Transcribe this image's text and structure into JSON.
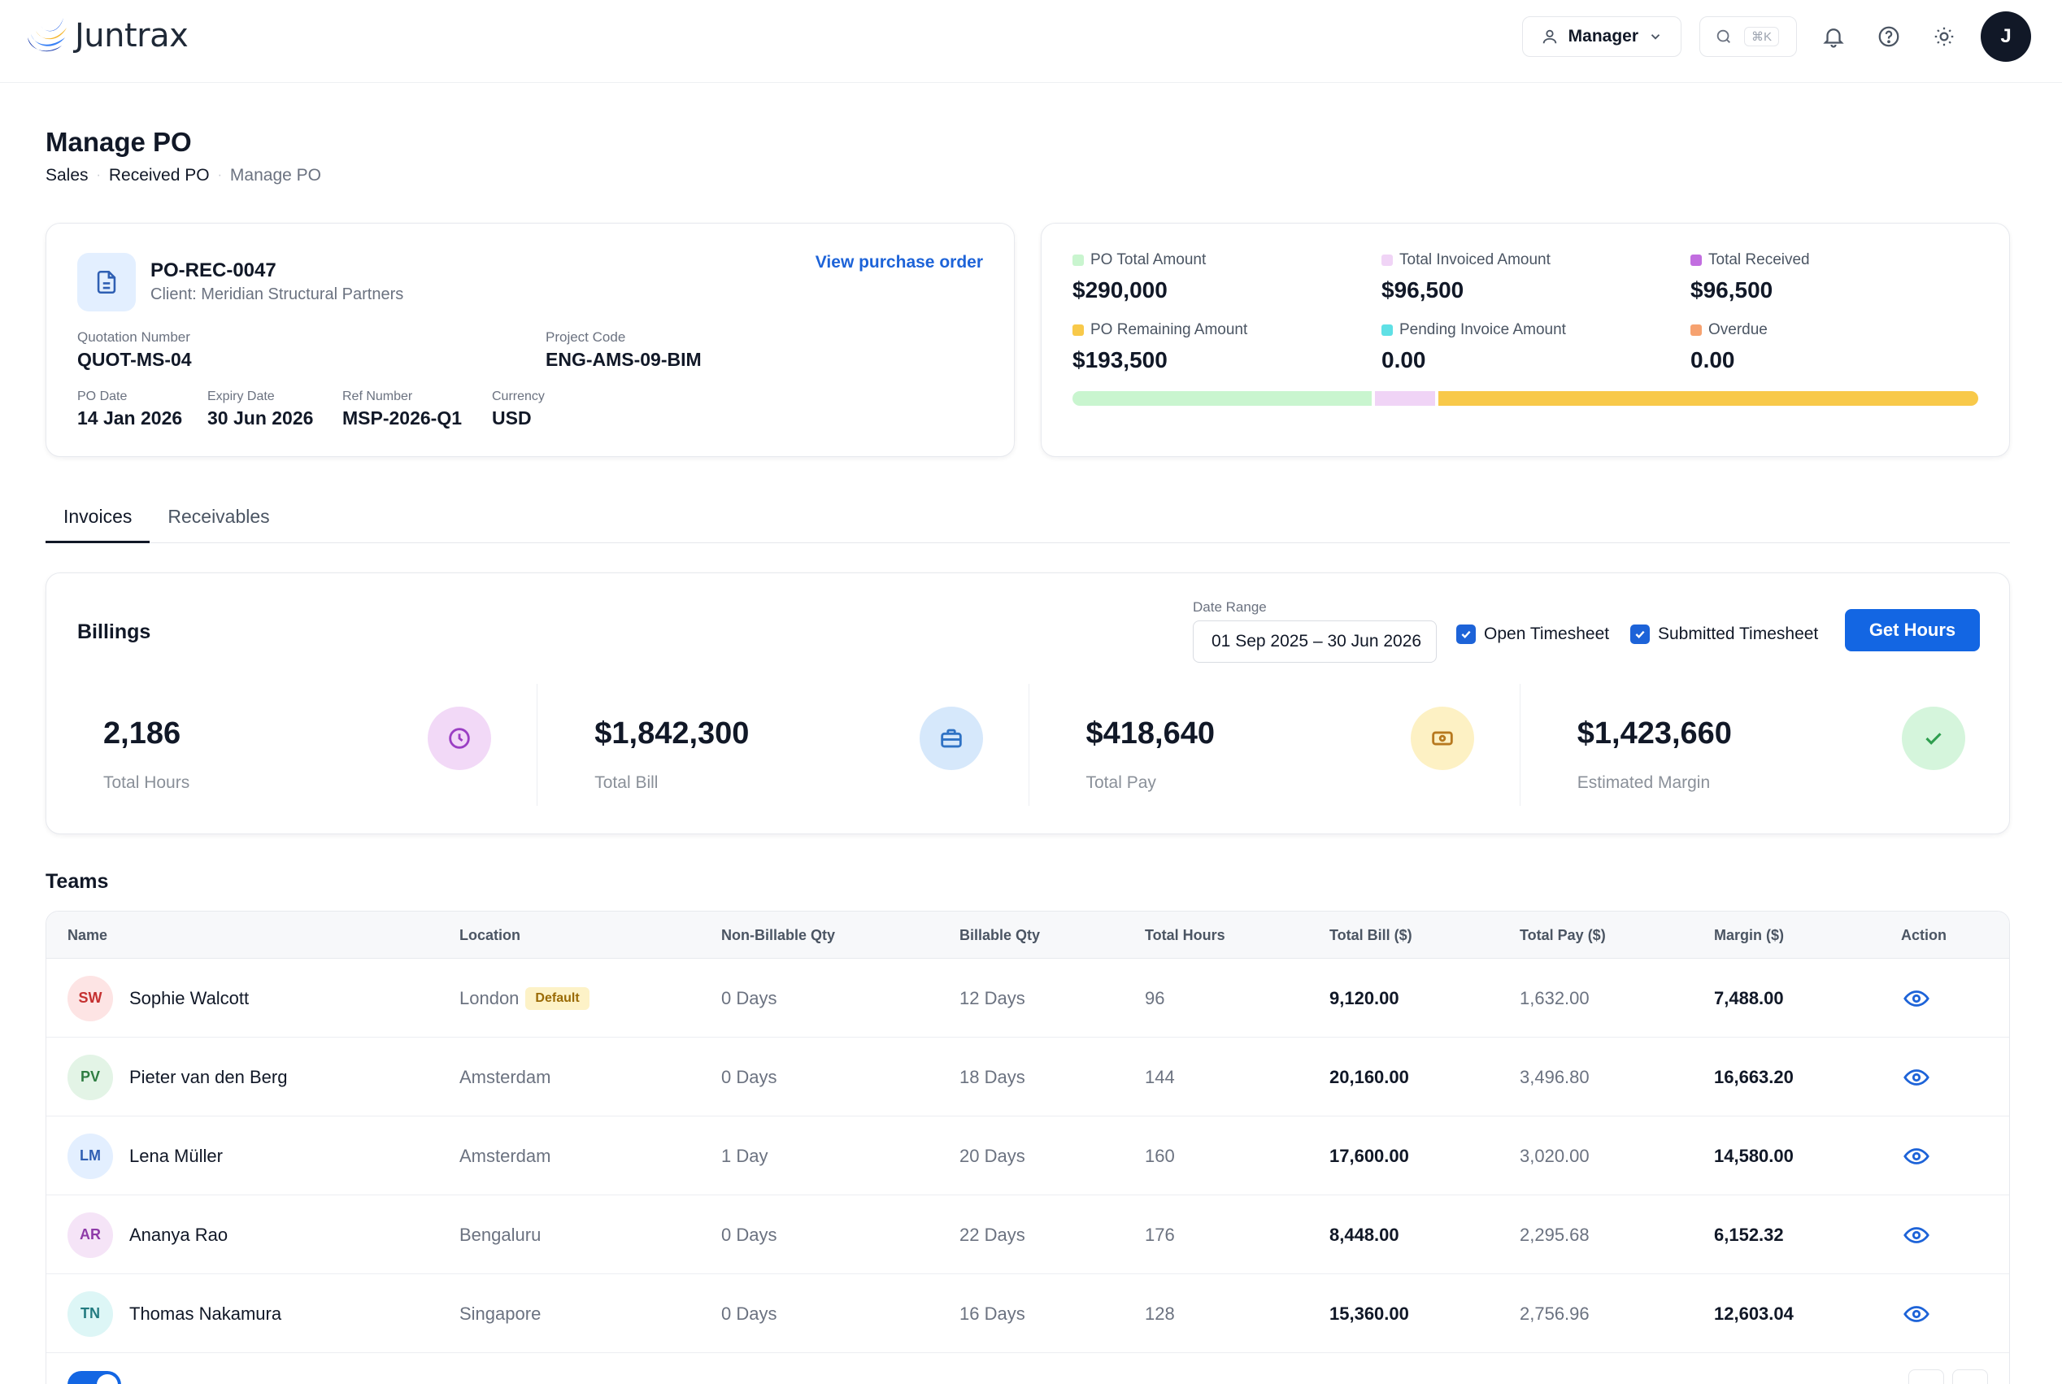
{
  "header": {
    "brand": "Juntrax",
    "role_label": "Manager",
    "search_shortcut": "⌘K",
    "avatar_initial": "J"
  },
  "page": {
    "title": "Manage PO",
    "breadcrumb": [
      "Sales",
      "Received PO",
      "Manage PO"
    ]
  },
  "po": {
    "id": "PO-REC-0047",
    "client": "Client: Meridian Structural Partners",
    "view_link": "View purchase order",
    "quotation_label": "Quotation Number",
    "quotation_value": "QUOT-MS-04",
    "project_label": "Project Code",
    "project_value": "ENG-AMS-09-BIM",
    "po_date_label": "PO Date",
    "po_date_value": "14 Jan 2026",
    "expiry_label": "Expiry Date",
    "expiry_value": "30 Jun 2026",
    "ref_label": "Ref Number",
    "ref_value": "MSP-2026-Q1",
    "currency_label": "Currency",
    "currency_value": "USD"
  },
  "summary": {
    "items": [
      {
        "label": "PO Total Amount",
        "value": "$290,000",
        "color": "#c9f5cf"
      },
      {
        "label": "Total Invoiced Amount",
        "value": "$96,500",
        "color": "#f0d4f6"
      },
      {
        "label": "Total Received",
        "value": "$96,500",
        "color": "#c26ee0"
      },
      {
        "label": "PO Remaining Amount",
        "value": "$193,500",
        "color": "#f8c94a"
      },
      {
        "label": "Pending Invoice Amount",
        "value": "0.00",
        "color": "#5fe0e5"
      },
      {
        "label": "Overdue",
        "value": "0.00",
        "color": "#f6a270"
      }
    ],
    "progress": [
      {
        "fraction": 0.333,
        "color": "#c9f5cf"
      },
      {
        "fraction": 0.067,
        "color": "#f0d4f6"
      },
      {
        "fraction": 0.6,
        "color": "#f8c94a"
      }
    ]
  },
  "tabs": [
    "Invoices",
    "Receivables"
  ],
  "billings": {
    "title": "Billings",
    "date_range_label": "Date Range",
    "date_range_value": "01 Sep 2025 – 30 Jun 2026",
    "open_timesheet": "Open Timesheet",
    "submitted_timesheet": "Submitted Timesheet",
    "get_hours": "Get Hours",
    "stats": [
      {
        "value": "2,186",
        "label": "Total Hours",
        "icon": "clock-icon",
        "bg": "#f2d9f7",
        "fg": "#9b3fc4"
      },
      {
        "value": "$1,842,300",
        "label": "Total Bill",
        "icon": "briefcase-icon",
        "bg": "#d6e8fb",
        "fg": "#2f72c4"
      },
      {
        "value": "$418,640",
        "label": "Total Pay",
        "icon": "cash-icon",
        "bg": "#fdf1c4",
        "fg": "#b7791f"
      },
      {
        "value": "$1,423,660",
        "label": "Estimated Margin",
        "icon": "check-icon",
        "bg": "#d5f5dc",
        "fg": "#2f9e4f"
      }
    ]
  },
  "teams": {
    "title": "Teams",
    "columns": [
      "Name",
      "Location",
      "Non-Billable Qty",
      "Billable Qty",
      "Total Hours",
      "Total Bill ($)",
      "Total Pay ($)",
      "Margin ($)",
      "Action"
    ],
    "default_badge": "Default",
    "rows": [
      {
        "initials": "SW",
        "name": "Sophie Walcott",
        "location": "London",
        "default": true,
        "non_billable": "0 Days",
        "billable": "12 Days",
        "hours": "96",
        "bill": "9,120.00",
        "pay": "1,632.00",
        "margin": "7,488.00",
        "av_bg": "#fde4e4",
        "av_fg": "#c53030"
      },
      {
        "initials": "PV",
        "name": "Pieter van den Berg",
        "location": "Amsterdam",
        "default": false,
        "non_billable": "0 Days",
        "billable": "18 Days",
        "hours": "144",
        "bill": "20,160.00",
        "pay": "3,496.80",
        "margin": "16,663.20",
        "av_bg": "#e3f4e6",
        "av_fg": "#2f7d42"
      },
      {
        "initials": "LM",
        "name": "Lena Müller",
        "location": "Amsterdam",
        "default": false,
        "non_billable": "1 Day",
        "billable": "20 Days",
        "hours": "160",
        "bill": "17,600.00",
        "pay": "3,020.00",
        "margin": "14,580.00",
        "av_bg": "#e3efff",
        "av_fg": "#2f5fb3"
      },
      {
        "initials": "AR",
        "name": "Ananya Rao",
        "location": "Bengaluru",
        "default": false,
        "non_billable": "0 Days",
        "billable": "22 Days",
        "hours": "176",
        "bill": "8,448.00",
        "pay": "2,295.68",
        "margin": "6,152.32",
        "av_bg": "#f5e4f7",
        "av_fg": "#8e3aa8"
      },
      {
        "initials": "TN",
        "name": "Thomas Nakamura",
        "location": "Singapore",
        "default": false,
        "non_billable": "0 Days",
        "billable": "16 Days",
        "hours": "128",
        "bill": "15,360.00",
        "pay": "2,756.96",
        "margin": "12,603.04",
        "av_bg": "#ddf6f6",
        "av_fg": "#237b80"
      }
    ]
  }
}
